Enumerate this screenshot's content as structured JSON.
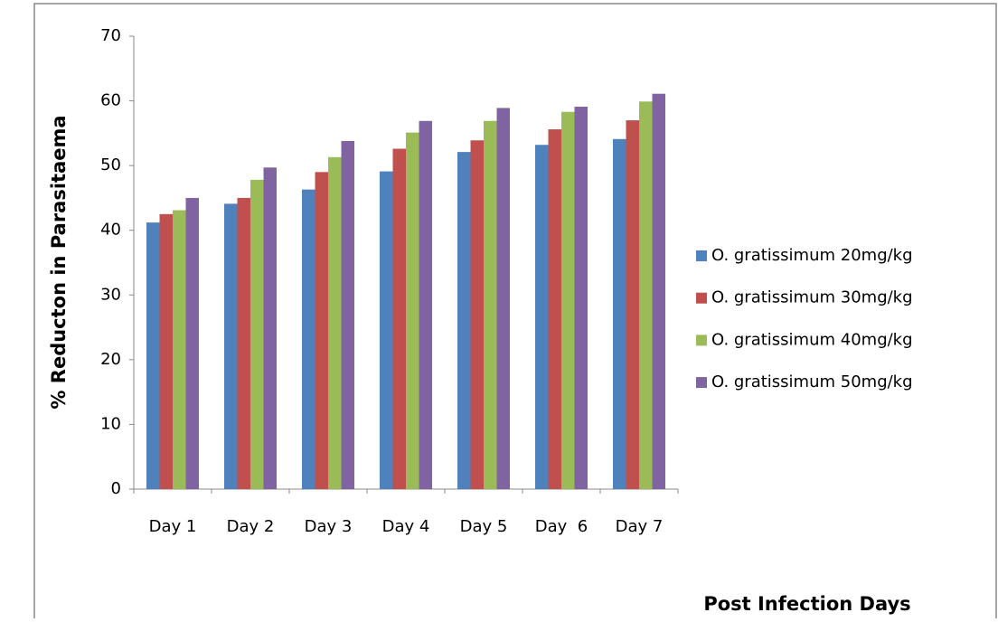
{
  "chart_data": {
    "type": "bar",
    "categories": [
      "Day 1",
      "Day 2",
      "Day 3",
      "Day 4",
      "Day 5",
      "Day  6",
      "Day 7"
    ],
    "series": [
      {
        "name": "O. gratissimum 20mg/kg",
        "color": "#4f81bd",
        "values": [
          41.2,
          44.1,
          46.3,
          49.1,
          52.1,
          53.2,
          54.1
        ]
      },
      {
        "name": "O. gratissimum 30mg/kg",
        "color": "#c0504d",
        "values": [
          42.5,
          45.0,
          49.0,
          52.6,
          53.9,
          55.6,
          57.0
        ]
      },
      {
        "name": "O. gratissimum 40mg/kg",
        "color": "#9bbb59",
        "values": [
          43.1,
          47.8,
          51.3,
          55.1,
          56.9,
          58.3,
          59.9
        ]
      },
      {
        "name": "O. gratissimum 50mg/kg",
        "color": "#8064a2",
        "values": [
          45.0,
          49.7,
          53.8,
          56.9,
          58.9,
          59.1,
          61.1
        ]
      }
    ],
    "y_label": "% Reducton in Parasitaema",
    "x_label": "Post Infection Days",
    "ylim": [
      0,
      70
    ],
    "yticks": [
      0,
      10,
      20,
      30,
      40,
      50,
      60,
      70
    ],
    "grid": false,
    "legend": "right"
  }
}
